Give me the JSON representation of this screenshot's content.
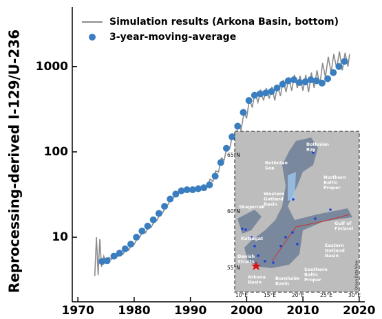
{
  "chart_data": {
    "type": "line",
    "y_label": "Reprocessing-derived I-129/U-236",
    "xlim": [
      1969,
      2021
    ],
    "xticks": [
      1970,
      1980,
      1990,
      2000,
      2010,
      2020
    ],
    "ylim": [
      1.75,
      5000
    ],
    "yticks": [
      10,
      100,
      1000
    ],
    "log_y": true,
    "legend": "upper left",
    "series": [
      {
        "name": "Simulation results (Arkona Basin, bottom)",
        "color": "#8c8c8c",
        "kind": "line",
        "x": [
          1973.0,
          1973.3,
          1973.6,
          1973.9,
          1974.2,
          1974.6,
          1975,
          1975.5,
          1976,
          1976.5,
          1977,
          1977.5,
          1978,
          1978.5,
          1979,
          1979.5,
          1980,
          1980.5,
          1981,
          1981.5,
          1982,
          1982.5,
          1983,
          1983.5,
          1984,
          1984.5,
          1985,
          1985.5,
          1986,
          1986.5,
          1987,
          1987.5,
          1988,
          1988.5,
          1989,
          1989.5,
          1990,
          1990.5,
          1991,
          1991.5,
          1992,
          1992.5,
          1993,
          1993.5,
          1994,
          1994.5,
          1995,
          1995.5,
          1996,
          1996.5,
          1997,
          1997.5,
          1998,
          1998.5,
          1999,
          1999.5,
          2000,
          2000.5,
          2001,
          2001.5,
          2002,
          2002.5,
          2003,
          2003.5,
          2004,
          2004.5,
          2005,
          2005.5,
          2006,
          2006.5,
          2007,
          2007.5,
          2008,
          2008.5,
          2009,
          2009.5,
          2010,
          2010.5,
          2011,
          2011.5,
          2012,
          2012.5,
          2013,
          2013.5,
          2014,
          2014.5,
          2015,
          2015.5,
          2016,
          2016.5,
          2017,
          2017.5,
          2018,
          2018.3
        ],
        "values": [
          3.5,
          10,
          3.6,
          9.5,
          4.5,
          6,
          5,
          5.8,
          5.5,
          6.2,
          5.9,
          6.5,
          6.3,
          7.2,
          7,
          8,
          8.2,
          9.5,
          10,
          11.5,
          11.2,
          13,
          13,
          15,
          15.5,
          18,
          19,
          22,
          24,
          28,
          29,
          32,
          33,
          36,
          34,
          37,
          35,
          38,
          35,
          37,
          37,
          40,
          39,
          48,
          45,
          60,
          58,
          85,
          80,
          115,
          110,
          160,
          140,
          210,
          180,
          280,
          250,
          420,
          330,
          500,
          380,
          520,
          400,
          560,
          420,
          580,
          400,
          600,
          450,
          700,
          500,
          750,
          520,
          800,
          560,
          780,
          520,
          800,
          500,
          850,
          560,
          900,
          600,
          1100,
          750,
          1300,
          850,
          1400,
          950,
          1500,
          900,
          1450,
          1000,
          1400
        ]
      },
      {
        "name": "3-year-moving-average",
        "color": "#3a7ec0",
        "kind": "scatter",
        "x": [
          1974.3,
          1975.2,
          1976.4,
          1977.4,
          1978.4,
          1979.4,
          1980.4,
          1981.4,
          1982.4,
          1983.4,
          1984.4,
          1985.4,
          1986.4,
          1987.4,
          1988.4,
          1989.4,
          1990.4,
          1991.4,
          1992.4,
          1993.4,
          1994.4,
          1995.4,
          1996.4,
          1997.4,
          1998.4,
          1999.4,
          2000.4,
          2001.4,
          2002.4,
          2003.4,
          2004.4,
          2005.4,
          2006.4,
          2007.4,
          2008.4,
          2009.4,
          2010.4,
          2011.4,
          2012.4,
          2013.4,
          2014.4,
          2015.4,
          2016.4,
          2017.4
        ],
        "values": [
          5.2,
          5.3,
          6,
          6.5,
          7.3,
          8.3,
          10,
          11.8,
          13.5,
          16,
          19,
          23,
          28,
          32,
          35,
          36,
          36,
          37,
          38,
          41,
          52,
          75,
          110,
          150,
          200,
          290,
          400,
          460,
          480,
          490,
          510,
          560,
          620,
          680,
          700,
          650,
          660,
          700,
          680,
          640,
          720,
          850,
          1000,
          1150
        ]
      }
    ],
    "inset": {
      "labels": [
        [
          "Bothnian",
          "Bay"
        ],
        [
          "Bothnian",
          "Sea"
        ],
        [
          "Northern",
          "Baltic",
          "Proper"
        ],
        [
          "Skagerrak"
        ],
        [
          "Western",
          "Gotland",
          "Basin"
        ],
        [
          "Gulf of",
          "Finland"
        ],
        [
          "Kattegat"
        ],
        [
          "Eastern",
          "Gotland",
          "Basin"
        ],
        [
          "Danish",
          "Straits"
        ],
        [
          "Arkona",
          "Basin"
        ],
        [
          "Bornholm",
          "Basin"
        ],
        [
          "Southern",
          "Baltic",
          "Proper"
        ]
      ],
      "lat_labels": [
        "65°N",
        "60°N",
        "55°N"
      ],
      "lon_labels": [
        "10°E",
        "15°E",
        "20°E",
        "25°E",
        "30°E"
      ],
      "credit": "Ocean Data View"
    }
  }
}
